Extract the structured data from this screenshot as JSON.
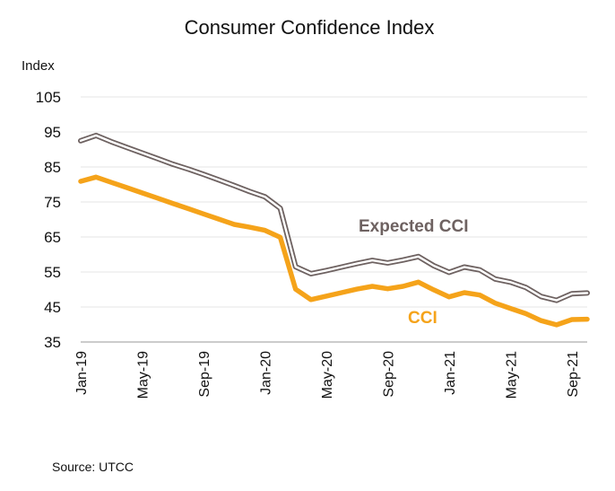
{
  "chart_data": {
    "type": "line",
    "title": "Consumer Confidence Index",
    "ylabel": "Index",
    "xlabel": "",
    "ylim": [
      35,
      105
    ],
    "yticks": [
      35,
      45,
      55,
      65,
      75,
      85,
      95,
      105
    ],
    "grid": "horizontal",
    "legend": "inline",
    "x": [
      "Jan-19",
      "Feb-19",
      "Mar-19",
      "Apr-19",
      "May-19",
      "Jun-19",
      "Jul-19",
      "Aug-19",
      "Sep-19",
      "Oct-19",
      "Nov-19",
      "Dec-19",
      "Jan-20",
      "Feb-20",
      "Mar-20",
      "Apr-20",
      "May-20",
      "Jun-20",
      "Jul-20",
      "Aug-20",
      "Sep-20",
      "Oct-20",
      "Nov-20",
      "Dec-20",
      "Jan-21",
      "Feb-21",
      "Mar-21",
      "Apr-21",
      "May-21",
      "Jun-21",
      "Jul-21",
      "Aug-21",
      "Sep-21",
      "Oct-21"
    ],
    "xtick_labels": [
      "Jan-19",
      "May-19",
      "Sep-19",
      "Jan-20",
      "May-20",
      "Sep-20",
      "Jan-21",
      "May-21",
      "Sep-21"
    ],
    "series": [
      {
        "name": "Expected CCI",
        "color": "#6e6261",
        "style": "double-line",
        "values": [
          92.5,
          94.0,
          92.2,
          90.6,
          89.0,
          87.4,
          85.8,
          84.4,
          82.9,
          81.3,
          79.7,
          78.0,
          76.5,
          73.2,
          56.5,
          54.5,
          55.4,
          56.4,
          57.4,
          58.3,
          57.6,
          58.4,
          59.4,
          56.8,
          54.9,
          56.4,
          55.6,
          53.0,
          52.1,
          50.6,
          48.0,
          46.9,
          48.8,
          49.0
        ]
      },
      {
        "name": "CCI",
        "color": "#f5a31a",
        "style": "thick",
        "values": [
          80.9,
          82.1,
          80.6,
          79.1,
          77.6,
          76.1,
          74.6,
          73.1,
          71.6,
          70.1,
          68.6,
          67.8,
          66.9,
          64.9,
          50.1,
          47.1,
          48.1,
          49.1,
          50.1,
          50.9,
          50.2,
          50.9,
          52.1,
          49.9,
          47.9,
          49.1,
          48.4,
          46.1,
          44.6,
          43.1,
          41.1,
          39.9,
          41.4,
          41.5
        ]
      }
    ],
    "source": "Source:  UTCC"
  }
}
